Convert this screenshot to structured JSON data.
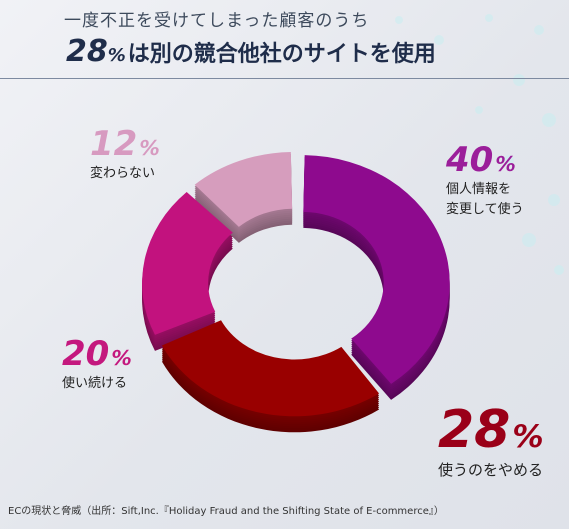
{
  "header": {
    "subtitle": "一度不正を受けてしまった顧客のうち",
    "title_value": "28",
    "title_unit": "%",
    "title_text": "は別の競合他社のサイトを使用"
  },
  "chart_data": {
    "type": "pie",
    "style": "3d-donut",
    "title": "一度不正を受けてしまった顧客のうち",
    "slices": [
      {
        "label": "個人情報を変更して使う",
        "value": 40,
        "color": "#8e0a8e"
      },
      {
        "label": "使うのをやめる",
        "value": 28,
        "color": "#990000"
      },
      {
        "label": "使い続ける",
        "value": 20,
        "color": "#c2127e"
      },
      {
        "label": "変わらない",
        "value": 12,
        "color": "#d69dbd"
      }
    ],
    "unit": "%"
  },
  "labels": {
    "s40_value": "40",
    "s40_line1": "個人情報を",
    "s40_line2": "変更して使う",
    "s28_value": "28",
    "s28_line1": "使うのをやめる",
    "s20_value": "20",
    "s20_line1": "使い続ける",
    "s12_value": "12",
    "s12_line1": "変わらない",
    "unit": "%"
  },
  "footer": {
    "source": "ECの現状と脅威（出所：Sift,Inc.『Holiday Fraud and the Shifting State of E-commerce』）"
  }
}
